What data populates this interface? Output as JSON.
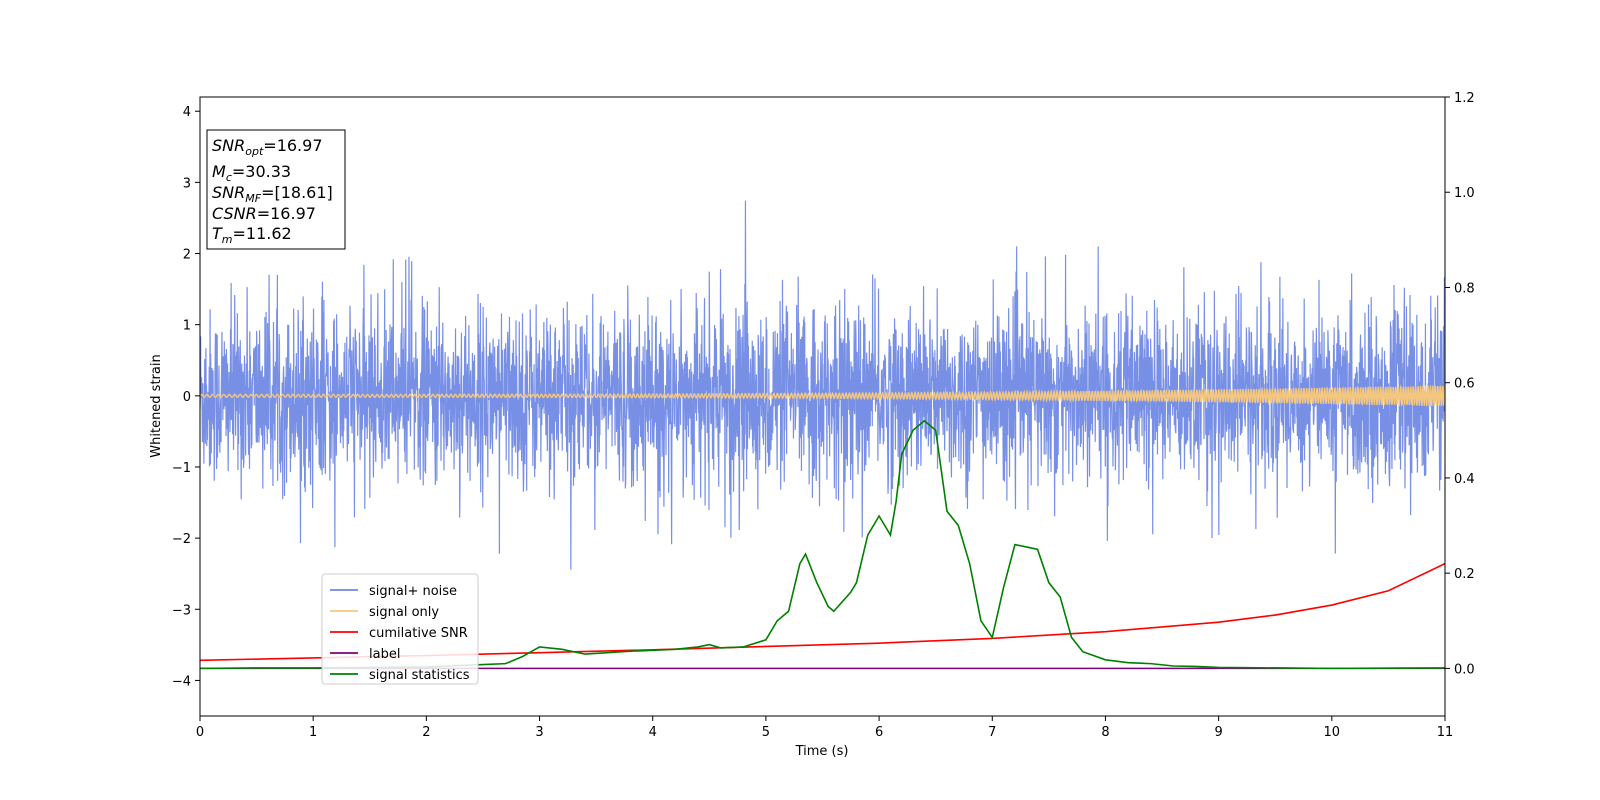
{
  "chart_data": {
    "type": "line",
    "title": "",
    "xlabel": "Time (s)",
    "ylabel": "Whitened strain",
    "y2label": "",
    "xlim": [
      0,
      11
    ],
    "ylim": [
      -4.5,
      4.2
    ],
    "y2lim": [
      -0.1,
      1.2
    ],
    "x_ticks": [
      "0",
      "1",
      "2",
      "3",
      "4",
      "5",
      "6",
      "7",
      "8",
      "9",
      "10",
      "11"
    ],
    "y_ticks": [
      "−4",
      "−3",
      "−2",
      "−1",
      "0",
      "1",
      "2",
      "3",
      "4"
    ],
    "y2_ticks": [
      "0.0",
      "0.2",
      "0.4",
      "0.6",
      "0.8",
      "1.0",
      "1.2"
    ],
    "grid": false,
    "legend_position": "lower-left",
    "colors": {
      "signal_noise": "#6b87e4",
      "signal_only": "#f5c77e",
      "cumulative_snr": "#ff0000",
      "label": "#800080",
      "signal_statistics": "#008000"
    },
    "info_box": {
      "snr_opt": {
        "base": "SNR",
        "sub": "opt",
        "value": "=16.97"
      },
      "mc": {
        "base": "M",
        "sub": "c",
        "value": "=30.33"
      },
      "snr_mf": {
        "base": "SNR",
        "sub": "MF",
        "value": "=[18.61]"
      },
      "csnr": {
        "base": "CSNR",
        "value": "=16.97"
      },
      "tm": {
        "base": "T",
        "sub": "m",
        "value": "=11.62"
      }
    },
    "series": [
      {
        "name": "signal+ noise",
        "axis": "left",
        "style": "dense noise, approx. amplitude ±1.7, extremes from -2.7 to 2.75",
        "envelope_upper": [
          1.7,
          2.1,
          2.0,
          1.7,
          2.75,
          2.0,
          2.2,
          2.1,
          2.0,
          2.1,
          2.35,
          2.3
        ],
        "envelope_lower": [
          -2.3,
          -2.4,
          -2.6,
          -2.7,
          -2.1,
          -2.2,
          -2.45,
          -2.1,
          -2.2,
          -2.3,
          -2.5,
          -2.2
        ]
      },
      {
        "name": "signal only",
        "axis": "left",
        "style": "chirp around 0 with increasing amplitude",
        "amplitude_start": 0.02,
        "amplitude_end": 0.15
      },
      {
        "name": "cumilative SNR",
        "axis": "right",
        "x": [
          0,
          1,
          2,
          3,
          4,
          5,
          6,
          7,
          8,
          9,
          9.5,
          10,
          10.5,
          11
        ],
        "y": [
          0.017,
          0.022,
          0.027,
          0.033,
          0.039,
          0.046,
          0.053,
          0.063,
          0.077,
          0.097,
          0.112,
          0.133,
          0.163,
          0.22
        ]
      },
      {
        "name": "label",
        "axis": "right",
        "x": [
          0,
          11
        ],
        "y": [
          0,
          0
        ]
      },
      {
        "name": "signal statistics",
        "axis": "right",
        "x": [
          0,
          0.5,
          1,
          1.5,
          2,
          2.5,
          2.7,
          2.85,
          3.0,
          3.2,
          3.4,
          3.6,
          3.8,
          4.0,
          4.2,
          4.4,
          4.5,
          4.6,
          4.8,
          5.0,
          5.1,
          5.2,
          5.3,
          5.35,
          5.45,
          5.55,
          5.6,
          5.75,
          5.8,
          5.9,
          6.0,
          6.1,
          6.15,
          6.2,
          6.3,
          6.4,
          6.5,
          6.6,
          6.7,
          6.8,
          6.9,
          7.0,
          7.1,
          7.2,
          7.3,
          7.4,
          7.5,
          7.6,
          7.7,
          7.8,
          8.0,
          8.2,
          8.4,
          8.6,
          8.8,
          9.0,
          10.0,
          11.0
        ],
        "y": [
          0.0,
          0.001,
          0.001,
          0.002,
          0.003,
          0.008,
          0.01,
          0.025,
          0.045,
          0.04,
          0.03,
          0.033,
          0.036,
          0.038,
          0.04,
          0.045,
          0.05,
          0.043,
          0.045,
          0.06,
          0.1,
          0.12,
          0.22,
          0.24,
          0.18,
          0.13,
          0.12,
          0.16,
          0.18,
          0.28,
          0.32,
          0.28,
          0.35,
          0.45,
          0.5,
          0.52,
          0.5,
          0.33,
          0.3,
          0.22,
          0.1,
          0.065,
          0.17,
          0.26,
          0.255,
          0.25,
          0.18,
          0.15,
          0.065,
          0.035,
          0.018,
          0.012,
          0.01,
          0.005,
          0.004,
          0.002,
          0.0,
          0.001
        ]
      }
    ]
  }
}
